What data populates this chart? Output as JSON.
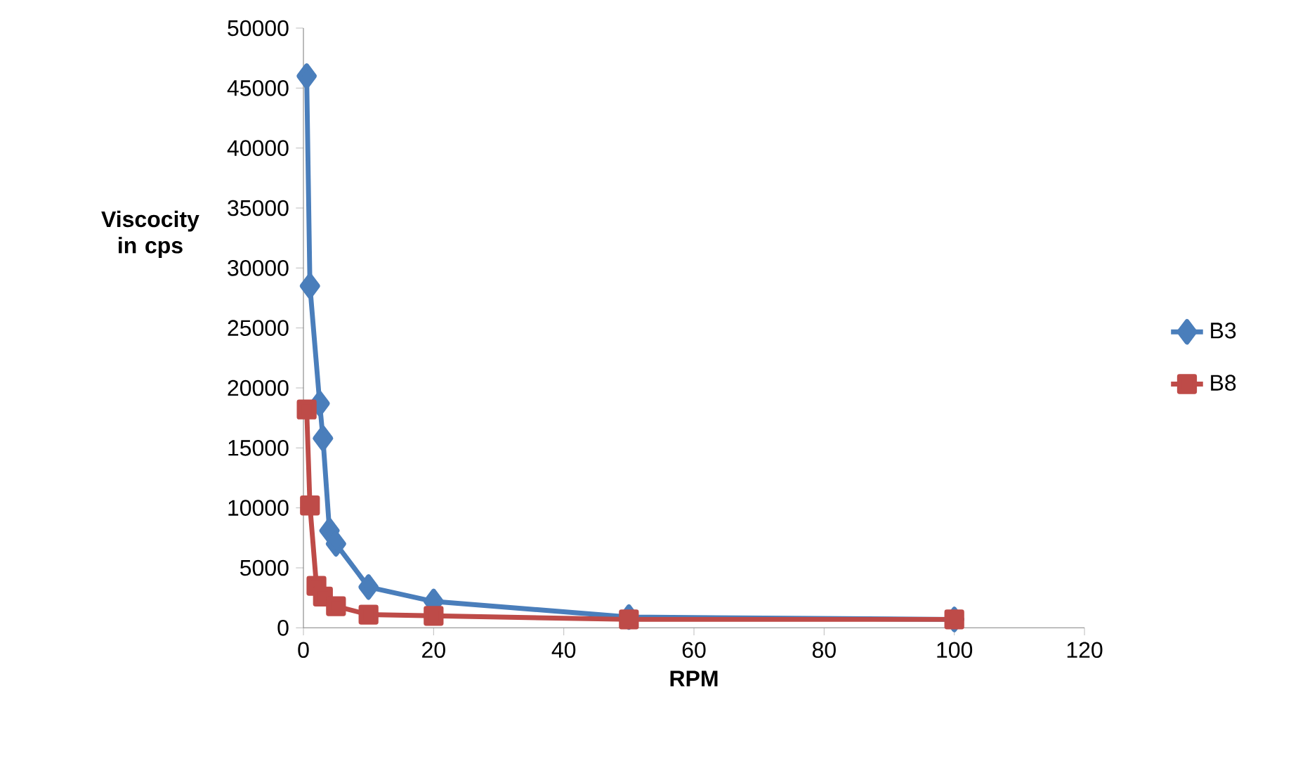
{
  "chart_data": {
    "type": "line",
    "xlabel": "RPM",
    "ylabel": "Viscocity in cps",
    "xlim": [
      0,
      120
    ],
    "xticks": [
      0,
      20,
      40,
      60,
      80,
      100,
      120
    ],
    "ylim": [
      0,
      50000
    ],
    "yticks": [
      0,
      5000,
      10000,
      15000,
      20000,
      25000,
      30000,
      35000,
      40000,
      45000,
      50000
    ],
    "grid": false,
    "legend": "right",
    "series": [
      {
        "name": "B3",
        "color": "#4a7ebb",
        "marker": "diamond",
        "x": [
          0.5,
          1,
          2.5,
          3,
          4,
          5,
          10,
          20,
          50,
          100
        ],
        "values": [
          46000,
          28500,
          18700,
          15800,
          8100,
          7000,
          3400,
          2200,
          900,
          700
        ]
      },
      {
        "name": "B8",
        "color": "#be4b48",
        "marker": "square",
        "x": [
          0.5,
          1,
          2,
          3,
          5,
          10,
          20,
          50,
          100
        ],
        "values": [
          18200,
          10200,
          3500,
          2600,
          1800,
          1100,
          1000,
          700,
          700
        ]
      }
    ]
  }
}
